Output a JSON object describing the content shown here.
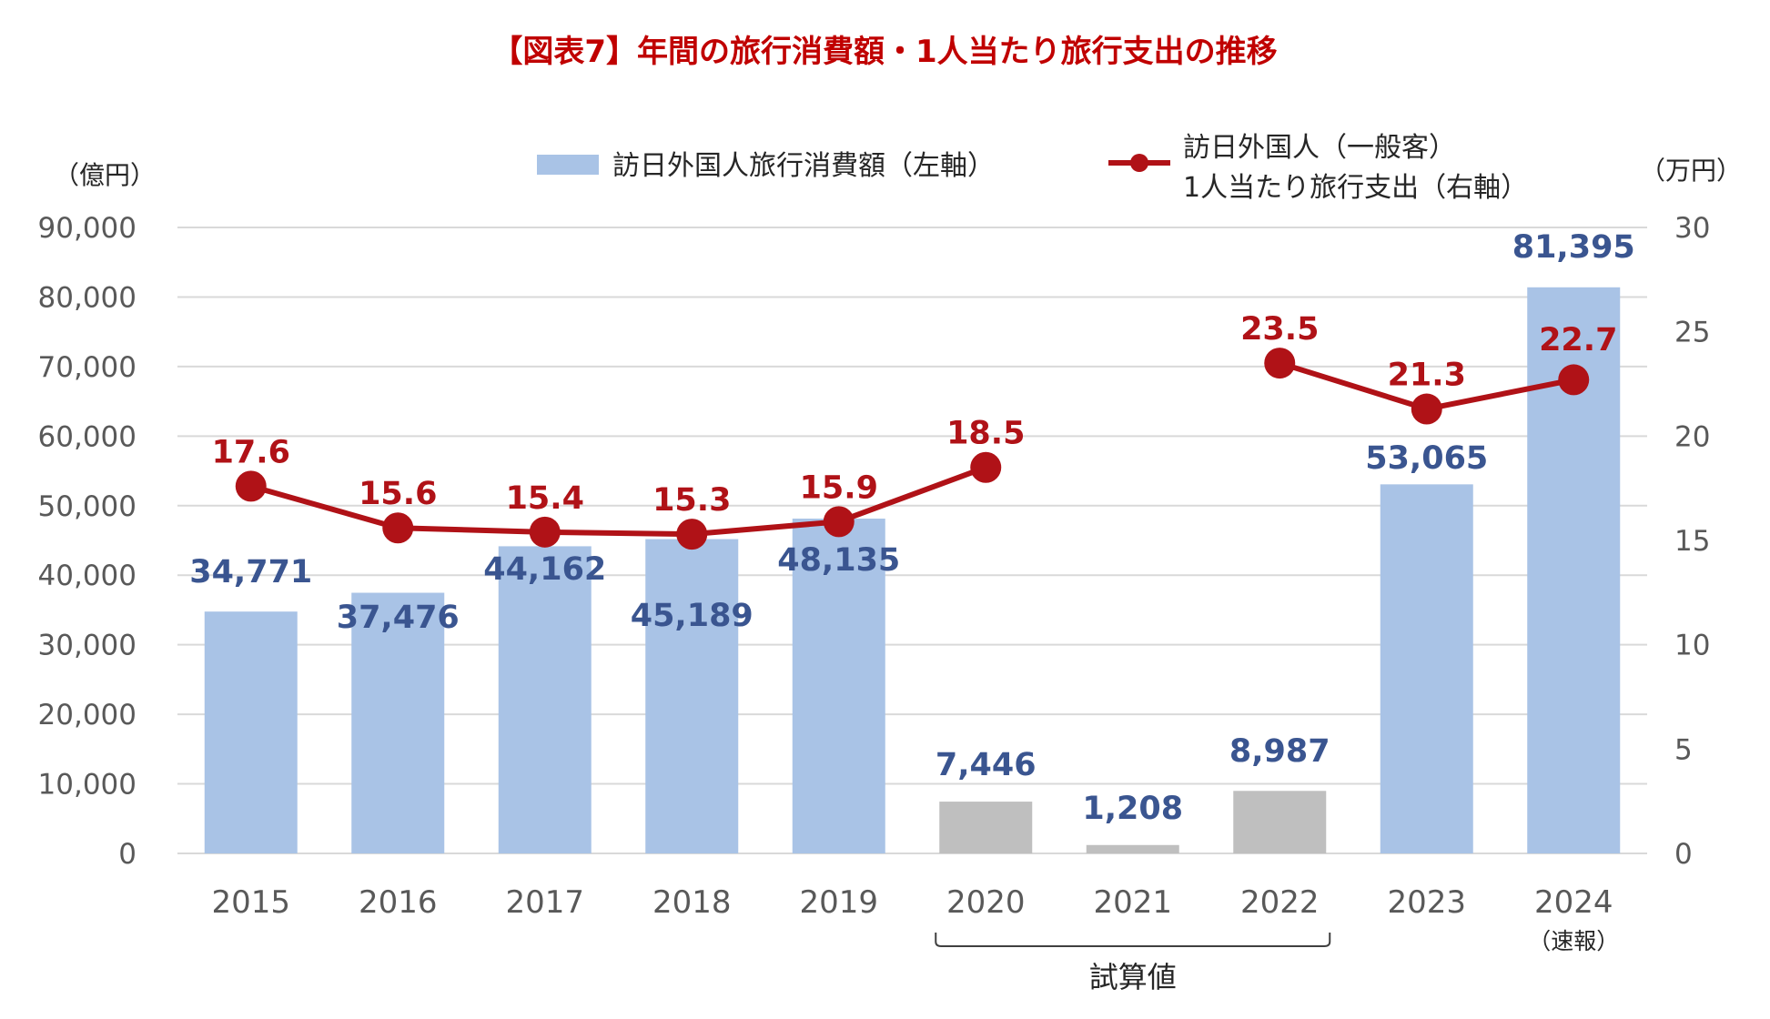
{
  "chart_data": {
    "type": "bar",
    "title": "【図表7】年間の旅行消費額・1人当たり旅行支出の推移",
    "categories": [
      "2015",
      "2016",
      "2017",
      "2018",
      "2019",
      "2020",
      "2021",
      "2022",
      "2023",
      "2024"
    ],
    "category_note": {
      "index": 9,
      "text": "（速報）"
    },
    "bracket_label": "試算値",
    "bracket_range": [
      "2020",
      "2022"
    ],
    "y_left": {
      "unit": "（億円）",
      "ylim": [
        0,
        90000
      ],
      "ticks": [
        "0",
        "10,000",
        "20,000",
        "30,000",
        "40,000",
        "50,000",
        "60,000",
        "70,000",
        "80,000",
        "90,000"
      ]
    },
    "y_right": {
      "unit": "（万円）",
      "ylim": [
        0,
        30
      ],
      "ticks": [
        "0",
        "5",
        "10",
        "15",
        "20",
        "25",
        "30"
      ]
    },
    "grid": true,
    "legend_placement": "top",
    "series": [
      {
        "name": "訪日外国人旅行消費額（左軸）",
        "type": "bar",
        "axis": "left",
        "values": [
          34771,
          37476,
          44162,
          45189,
          48135,
          7446,
          1208,
          8987,
          53065,
          81395
        ],
        "labels": [
          "34,771",
          "37,476",
          "44,162",
          "45,189",
          "48,135",
          "7,446",
          "1,208",
          "8,987",
          "53,065",
          "81,395"
        ],
        "color": "#A9C3E6",
        "estimate_color": "#BFBFBF",
        "label_color": "#3A5590"
      },
      {
        "name": "訪日外国人（一般客）\n1人当たり旅行支出（右軸）",
        "name_lines": [
          "訪日外国人（一般客）",
          "1人当たり旅行支出（右軸）"
        ],
        "type": "line",
        "axis": "right",
        "values": [
          17.6,
          15.6,
          15.4,
          15.3,
          15.9,
          18.5,
          null,
          23.5,
          21.3,
          22.7
        ],
        "labels": [
          "17.6",
          "15.6",
          "15.4",
          "15.3",
          "15.9",
          "18.5",
          null,
          "23.5",
          "21.3",
          "22.7"
        ],
        "color": "#B01217",
        "label_color": "#B01217"
      }
    ],
    "colors": {
      "title": "#C00000",
      "axis_text": "#595959",
      "grid": "#D9D9D9",
      "text": "#262626"
    }
  }
}
